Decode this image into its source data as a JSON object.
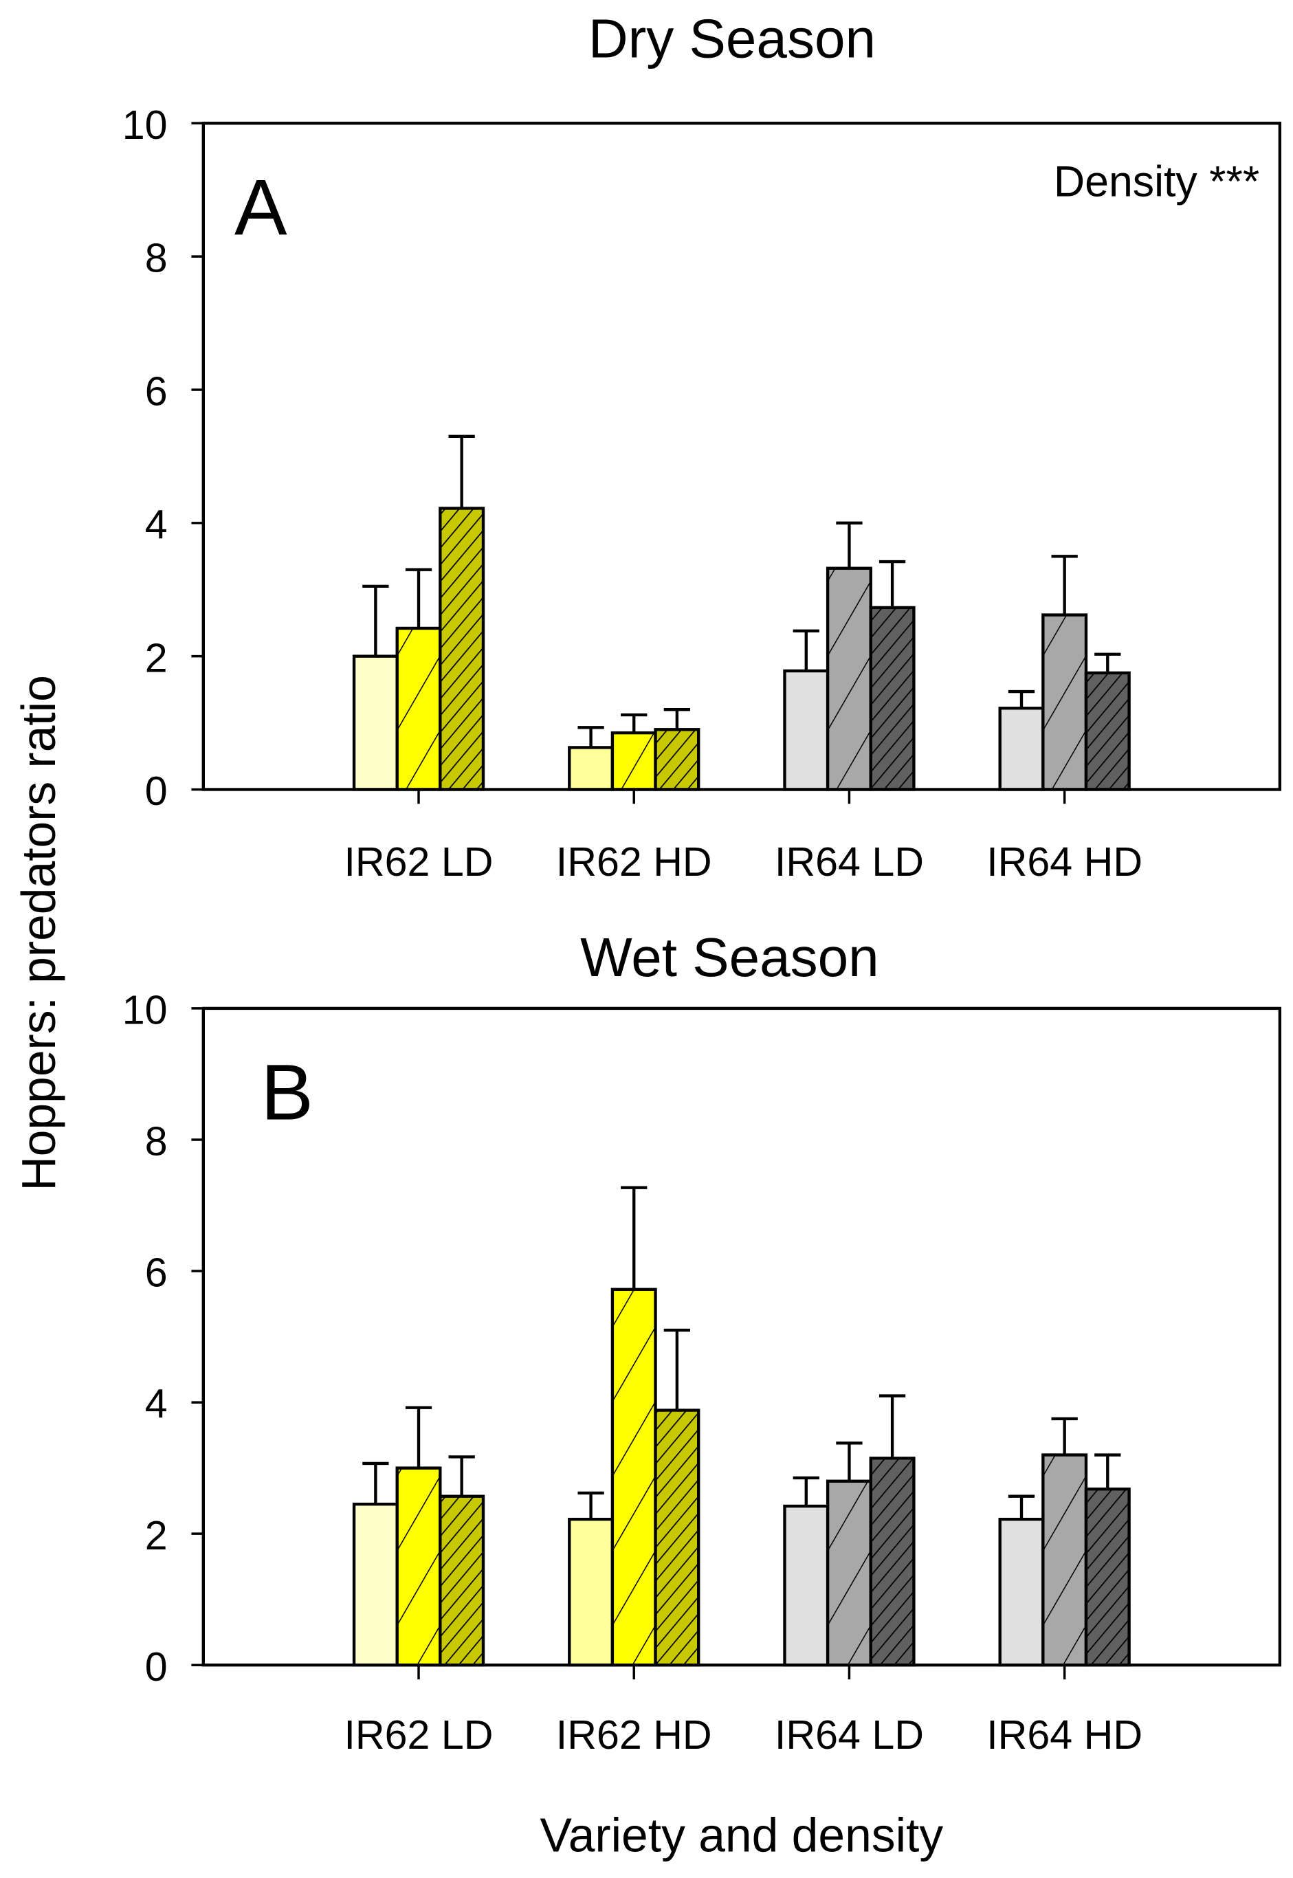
{
  "chart_data": [
    {
      "type": "bar",
      "panel_label": "A",
      "title": "Dry Season",
      "annotation": "Density ***",
      "xlabel": "",
      "ylabel": "Hoppers: predators ratio",
      "ylim": [
        0,
        10
      ],
      "yticks": [
        "0",
        "2",
        "4",
        "6",
        "8",
        "10"
      ],
      "categories": [
        "IR62 LD",
        "IR62 HD",
        "IR64 LD",
        "IR64 HD"
      ],
      "series": [
        {
          "name": "bar 1 (open)",
          "values": [
            2.0,
            0.63,
            1.78,
            1.22
          ],
          "error_upper": [
            3.05,
            0.93,
            2.38,
            1.47
          ]
        },
        {
          "name": "bar 2 (sparse hatch)",
          "values": [
            2.42,
            0.85,
            3.32,
            2.62
          ],
          "error_upper": [
            3.3,
            1.12,
            4.0,
            3.5
          ]
        },
        {
          "name": "bar 3 (dense hatch)",
          "values": [
            4.22,
            0.9,
            2.73,
            1.75
          ],
          "error_upper": [
            5.3,
            1.2,
            3.42,
            2.03
          ]
        }
      ],
      "grid": false
    },
    {
      "type": "bar",
      "panel_label": "B",
      "title": "Wet Season",
      "xlabel": "Variety and density",
      "ylabel": "Hoppers: predators ratio",
      "ylim": [
        0,
        10
      ],
      "yticks": [
        "0",
        "2",
        "4",
        "6",
        "8",
        "10"
      ],
      "categories": [
        "IR62 LD",
        "IR62 HD",
        "IR64 LD",
        "IR64 HD"
      ],
      "series": [
        {
          "name": "bar 1 (open)",
          "values": [
            2.45,
            2.22,
            2.42,
            2.22
          ],
          "error_upper": [
            3.07,
            2.62,
            2.85,
            2.57
          ]
        },
        {
          "name": "bar 2 (sparse hatch)",
          "values": [
            3.0,
            5.72,
            2.8,
            3.2
          ],
          "error_upper": [
            3.92,
            7.27,
            3.38,
            3.75
          ]
        },
        {
          "name": "bar 3 (dense hatch)",
          "values": [
            2.57,
            3.88,
            3.15,
            2.68
          ],
          "error_upper": [
            3.17,
            5.1,
            4.1,
            3.2
          ]
        }
      ],
      "grid": false
    }
  ],
  "colors": {
    "ir62": [
      "#FFFFC8",
      "#FFFF00",
      "#C8C800"
    ],
    "ir62_hd_open": "#FFFF99",
    "ir64": [
      "#E0E0E0",
      "#A8A8A8",
      "#606060"
    ]
  }
}
